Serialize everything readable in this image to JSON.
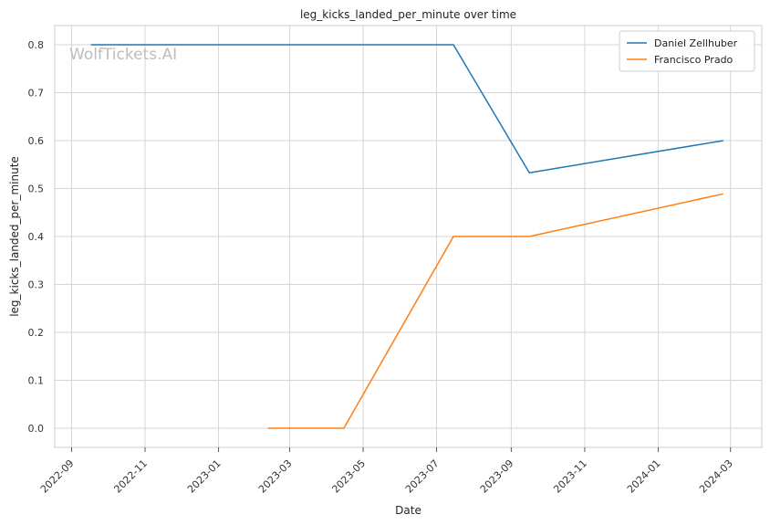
{
  "chart_data": {
    "type": "line",
    "title": "leg_kicks_landed_per_minute over time",
    "xlabel": "Date",
    "ylabel": "leg_kicks_landed_per_minute",
    "watermark": "WolfTickets.AI",
    "x_ticks": [
      "2022-09",
      "2022-11",
      "2023-01",
      "2023-03",
      "2023-05",
      "2023-07",
      "2023-09",
      "2023-11",
      "2024-01",
      "2024-03"
    ],
    "y_ticks": [
      "0.0",
      "0.1",
      "0.2",
      "0.3",
      "0.4",
      "0.5",
      "0.6",
      "0.7",
      "0.8"
    ],
    "xlim": [
      "2022-08-18",
      "2024-03-27"
    ],
    "ylim": [
      -0.04,
      0.84
    ],
    "grid": true,
    "legend_position": "top-right",
    "series": [
      {
        "name": "Daniel Zellhuber",
        "color": "#1f77b4",
        "points": [
          {
            "x": "2022-09-17",
            "y": 0.8
          },
          {
            "x": "2023-07-15",
            "y": 0.8
          },
          {
            "x": "2023-09-16",
            "y": 0.533
          },
          {
            "x": "2024-02-24",
            "y": 0.6
          }
        ]
      },
      {
        "name": "Francisco Prado",
        "color": "#ff7f0e",
        "points": [
          {
            "x": "2023-02-11",
            "y": 0.0
          },
          {
            "x": "2023-04-15",
            "y": 0.0
          },
          {
            "x": "2023-07-15",
            "y": 0.4
          },
          {
            "x": "2023-09-16",
            "y": 0.4
          },
          {
            "x": "2024-02-24",
            "y": 0.489
          }
        ]
      }
    ]
  }
}
